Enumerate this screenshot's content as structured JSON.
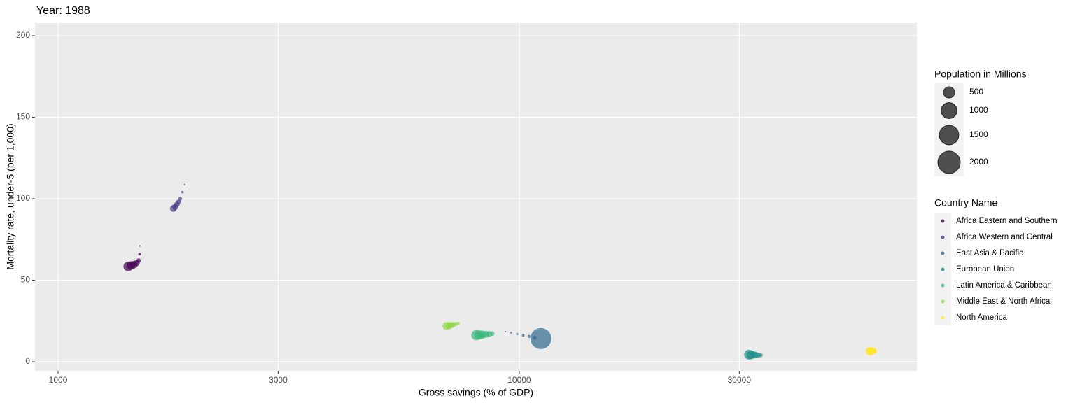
{
  "chart_data": {
    "type": "scatter",
    "title": "Year: 1988",
    "x_label": "Gross savings (% of GDP)",
    "y_label": "Mortality rate, under-5 (per 1,000)",
    "x_log": true,
    "xlim": [
      891,
      72800
    ],
    "xticks": [
      1000,
      3000,
      10000,
      30000
    ],
    "ylim": [
      -5.6,
      207.7
    ],
    "yticks": [
      0,
      50,
      100,
      150,
      200
    ],
    "grid": true,
    "size_legend": {
      "title": "Population in Millions",
      "values": [
        500,
        1000,
        1500,
        2000
      ]
    },
    "legend_title": "Country Name",
    "legend_position": "right",
    "series": [
      {
        "name": "Africa Eastern and Southern",
        "color": "#440154",
        "x": [
          1504,
          1502,
          1495,
          1480,
          1460,
          1440,
          1419
        ],
        "y": [
          71,
          66,
          62,
          60.5,
          59.5,
          59,
          58.4
        ],
        "size": [
          10,
          30,
          80,
          150,
          220,
          290,
          360
        ]
      },
      {
        "name": "Africa Western and Central",
        "color": "#443A83",
        "x": [
          1882,
          1860,
          1840,
          1825,
          1810,
          1795,
          1778
        ],
        "y": [
          108.6,
          104,
          100,
          98,
          96.5,
          95,
          94
        ],
        "size": [
          10,
          25,
          55,
          90,
          120,
          150,
          180
        ]
      },
      {
        "name": "East Asia & Pacific",
        "color": "#31688E",
        "x": [
          9330,
          9600,
          9900,
          10200,
          10500,
          10800,
          11140
        ],
        "y": [
          18.5,
          17.8,
          17,
          16.2,
          15.5,
          14.8,
          14.2
        ],
        "size": [
          10,
          15,
          20,
          30,
          40,
          60,
          1750
        ]
      },
      {
        "name": "European Union",
        "color": "#21908C",
        "x": [
          33400,
          33000,
          32600,
          32200,
          31800,
          31500
        ],
        "y": [
          4,
          4,
          4.1,
          4.2,
          4.2,
          4.3
        ],
        "size": [
          60,
          100,
          150,
          220,
          300,
          390
        ]
      },
      {
        "name": "Latin America & Caribbean",
        "color": "#35B779",
        "x": [
          8740,
          8600,
          8450,
          8300,
          8180,
          8070
        ],
        "y": [
          17.2,
          17,
          16.8,
          16.6,
          16.4,
          16.3
        ],
        "size": [
          80,
          140,
          200,
          270,
          340,
          410
        ]
      },
      {
        "name": "Middle East & North Africa",
        "color": "#8FD744",
        "x": [
          7380,
          7300,
          7200,
          7120,
          7040,
          6950
        ],
        "y": [
          23.6,
          23.2,
          22.8,
          22.4,
          22.1,
          21.9
        ],
        "size": [
          30,
          60,
          100,
          150,
          200,
          250
        ]
      },
      {
        "name": "North America",
        "color": "#FDE725",
        "x": [
          59000,
          58700,
          58400,
          58100,
          57800,
          57500
        ],
        "y": [
          6.7,
          6.6,
          6.6,
          6.5,
          6.5,
          6.4
        ],
        "size": [
          80,
          120,
          160,
          200,
          240,
          275
        ]
      }
    ]
  }
}
